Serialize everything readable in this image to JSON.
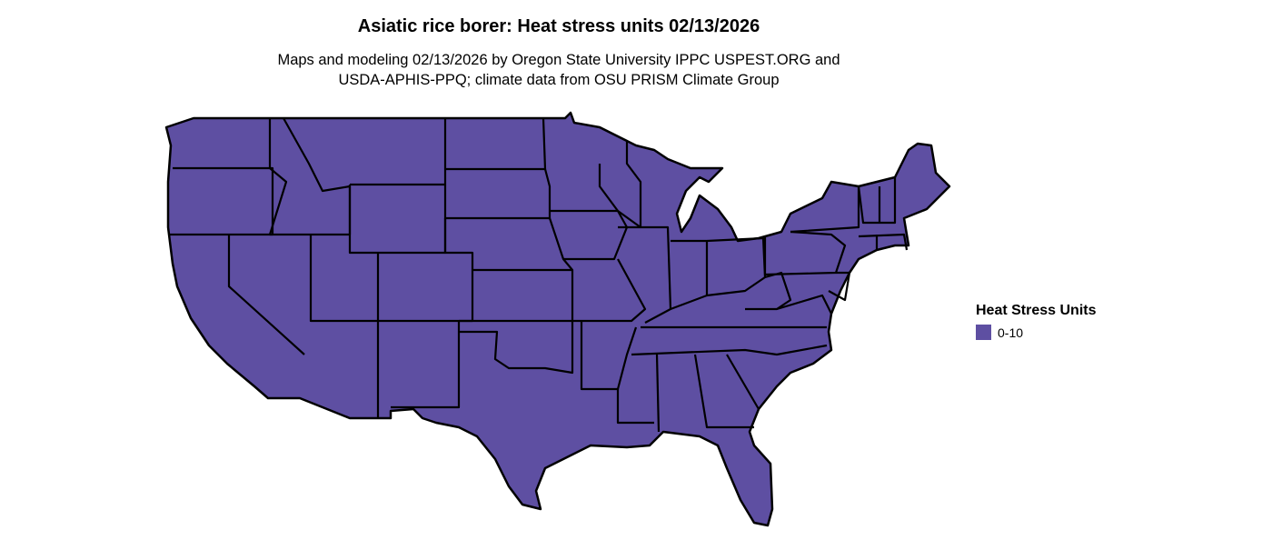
{
  "title": "Asiatic rice borer: Heat stress units 02/13/2026",
  "subtitle_line1": "Maps and modeling 02/13/2026 by Oregon State University IPPC USPEST.ORG and",
  "subtitle_line2": "USDA-APHIS-PPQ; climate data from OSU PRISM Climate Group",
  "legend": {
    "title": "Heat Stress Units",
    "items": [
      {
        "label": "0-10",
        "color": "#5e4fa2"
      }
    ]
  },
  "map": {
    "region": "Contiguous United States",
    "fill_color": "#5e4fa2",
    "border_color": "#000000"
  }
}
